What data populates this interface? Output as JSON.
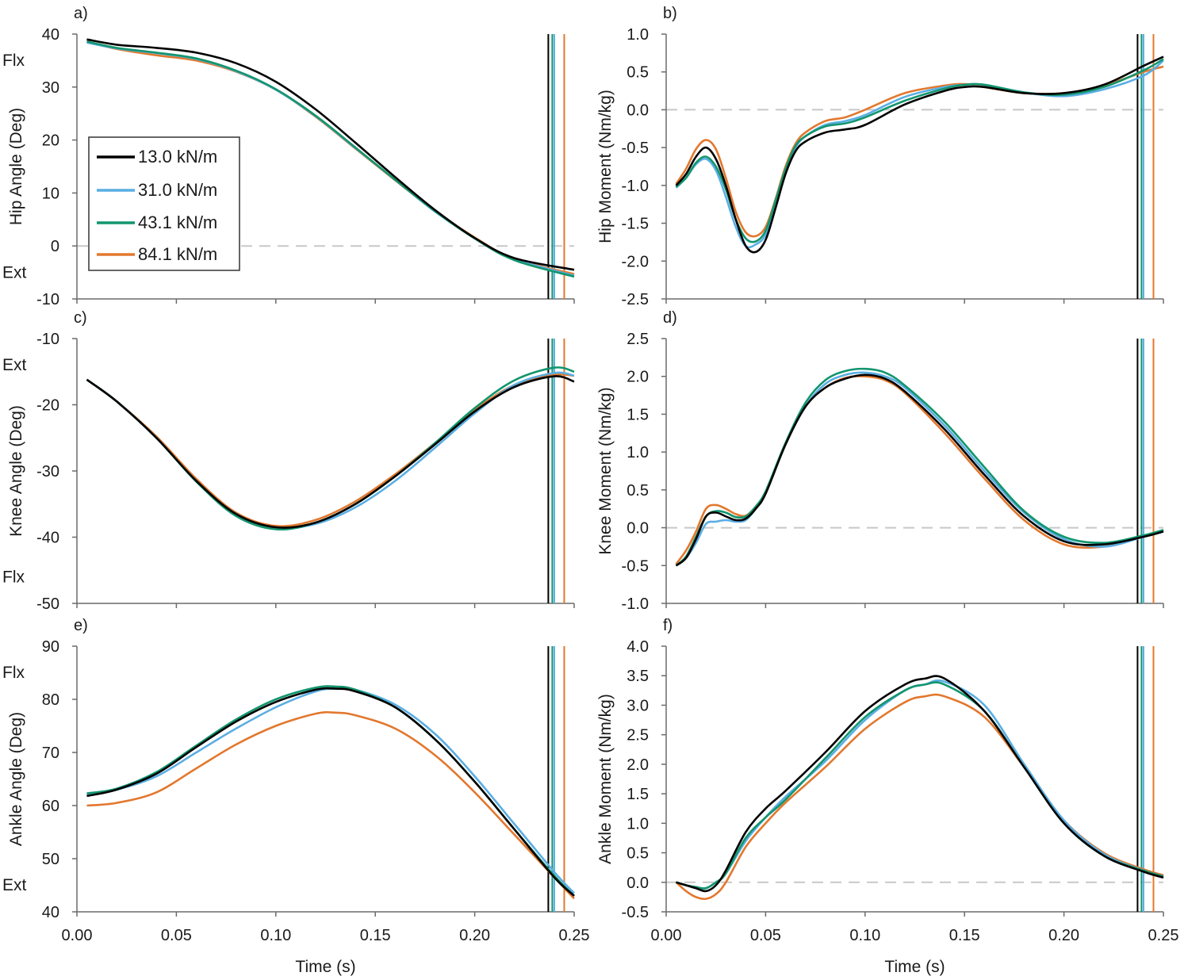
{
  "figure": {
    "xlabel": "Time (s)",
    "legend_title": "",
    "x_ticks": [
      "0.00",
      "0.05",
      "0.10",
      "0.15",
      "0.20",
      "0.25"
    ]
  },
  "series_meta": [
    {
      "name": "13.0 kN/m",
      "color": "#000000",
      "toe_off": 0.237
    },
    {
      "name": "31.0 kN/m",
      "color": "#5aaee3",
      "toe_off": 0.24
    },
    {
      "name": "43.1 kN/m",
      "color": "#12956e",
      "toe_off": 0.239
    },
    {
      "name": "84.1 kN/m",
      "color": "#e2782e",
      "toe_off": 0.245
    }
  ],
  "chart_data": [
    {
      "id": "a",
      "panel_label": "a)",
      "type": "line",
      "ylabel": "Hip Angle (Deg)",
      "xlim": [
        0,
        0.25
      ],
      "ylim": [
        -10,
        40
      ],
      "yticks": [
        "-10",
        "0",
        "10",
        "20",
        "30",
        "40"
      ],
      "direction_top": "Flx",
      "direction_bottom": "Ext",
      "x": [
        0.005,
        0.02,
        0.04,
        0.06,
        0.08,
        0.1,
        0.12,
        0.14,
        0.16,
        0.18,
        0.2,
        0.22,
        0.25
      ],
      "series": [
        {
          "name": "13.0 kN/m",
          "values": [
            39.0,
            38.0,
            37.4,
            36.5,
            34.5,
            31.0,
            25.8,
            19.5,
            13.0,
            6.8,
            1.5,
            -2.3,
            -4.5
          ]
        },
        {
          "name": "31.0 kN/m",
          "values": [
            38.4,
            37.3,
            36.4,
            35.3,
            33.0,
            29.5,
            24.5,
            18.5,
            12.5,
            6.5,
            1.5,
            -2.5,
            -5.6
          ]
        },
        {
          "name": "43.1 kN/m",
          "values": [
            38.6,
            37.4,
            36.5,
            35.4,
            33.1,
            29.6,
            24.6,
            18.6,
            12.5,
            6.6,
            1.4,
            -2.7,
            -5.8
          ]
        },
        {
          "name": "84.1 kN/m",
          "values": [
            38.6,
            37.2,
            36.0,
            35.0,
            32.9,
            29.5,
            24.4,
            18.4,
            12.4,
            6.6,
            1.6,
            -2.5,
            -5.3
          ]
        }
      ]
    },
    {
      "id": "b",
      "panel_label": "b)",
      "type": "line",
      "ylabel": "Hip Moment (Nm/kg)",
      "xlim": [
        0,
        0.25
      ],
      "ylim": [
        -2.5,
        1.0
      ],
      "yticks": [
        "-2.5",
        "-2.0",
        "-1.5",
        "-1.0",
        "-0.5",
        "0.0",
        "0.5",
        "1.0"
      ],
      "x": [
        0.005,
        0.01,
        0.015,
        0.02,
        0.025,
        0.03,
        0.035,
        0.04,
        0.045,
        0.05,
        0.055,
        0.06,
        0.065,
        0.07,
        0.08,
        0.09,
        0.1,
        0.12,
        0.14,
        0.15,
        0.16,
        0.18,
        0.2,
        0.22,
        0.24,
        0.25
      ],
      "series": [
        {
          "name": "13.0 kN/m",
          "values": [
            -1.0,
            -0.85,
            -0.62,
            -0.5,
            -0.65,
            -1.0,
            -1.45,
            -1.8,
            -1.88,
            -1.72,
            -1.3,
            -0.85,
            -0.55,
            -0.42,
            -0.3,
            -0.26,
            -0.2,
            0.07,
            0.25,
            0.3,
            0.3,
            0.22,
            0.22,
            0.33,
            0.58,
            0.7
          ]
        },
        {
          "name": "31.0 kN/m",
          "values": [
            -1.03,
            -0.9,
            -0.72,
            -0.65,
            -0.8,
            -1.15,
            -1.55,
            -1.8,
            -1.78,
            -1.65,
            -1.25,
            -0.8,
            -0.5,
            -0.35,
            -0.2,
            -0.15,
            -0.07,
            0.17,
            0.3,
            0.33,
            0.33,
            0.23,
            0.18,
            0.27,
            0.45,
            0.65
          ]
        },
        {
          "name": "43.1 kN/m",
          "values": [
            -1.02,
            -0.9,
            -0.7,
            -0.62,
            -0.75,
            -1.05,
            -1.45,
            -1.7,
            -1.74,
            -1.6,
            -1.2,
            -0.78,
            -0.48,
            -0.35,
            -0.22,
            -0.18,
            -0.1,
            0.12,
            0.28,
            0.33,
            0.33,
            0.23,
            0.2,
            0.3,
            0.52,
            0.67
          ]
        },
        {
          "name": "84.1 kN/m",
          "values": [
            -0.98,
            -0.78,
            -0.52,
            -0.4,
            -0.52,
            -0.9,
            -1.35,
            -1.62,
            -1.67,
            -1.55,
            -1.18,
            -0.75,
            -0.45,
            -0.3,
            -0.15,
            -0.1,
            0.0,
            0.22,
            0.32,
            0.34,
            0.3,
            0.22,
            0.22,
            0.32,
            0.5,
            0.57
          ]
        }
      ]
    },
    {
      "id": "c",
      "panel_label": "c)",
      "type": "line",
      "ylabel": "Knee Angle (Deg)",
      "xlim": [
        0,
        0.25
      ],
      "ylim": [
        -50,
        -10
      ],
      "yticks": [
        "-50",
        "-40",
        "-30",
        "-20",
        "-10"
      ],
      "direction_top": "Ext",
      "direction_bottom": "Flx",
      "x": [
        0.005,
        0.02,
        0.04,
        0.06,
        0.08,
        0.1,
        0.12,
        0.14,
        0.16,
        0.18,
        0.2,
        0.22,
        0.24,
        0.25
      ],
      "series": [
        {
          "name": "13.0 kN/m",
          "values": [
            -16.2,
            -19.5,
            -25.0,
            -31.5,
            -36.5,
            -38.5,
            -37.8,
            -35.0,
            -30.8,
            -26.0,
            -21.0,
            -17.3,
            -15.7,
            -16.5
          ]
        },
        {
          "name": "31.0 kN/m",
          "values": [
            -16.2,
            -19.5,
            -25.0,
            -31.5,
            -36.5,
            -38.6,
            -38.0,
            -35.5,
            -31.5,
            -26.5,
            -21.3,
            -17.0,
            -15.2,
            -15.6
          ]
        },
        {
          "name": "43.1 kN/m",
          "values": [
            -16.2,
            -19.5,
            -25.0,
            -31.6,
            -36.8,
            -38.8,
            -37.8,
            -35.0,
            -30.8,
            -25.8,
            -20.5,
            -16.3,
            -14.4,
            -15.0
          ]
        },
        {
          "name": "84.1 kN/m",
          "values": [
            -16.2,
            -19.5,
            -24.8,
            -31.2,
            -36.3,
            -38.3,
            -37.4,
            -34.6,
            -30.5,
            -25.8,
            -20.8,
            -17.0,
            -15.5,
            -15.6
          ]
        }
      ]
    },
    {
      "id": "d",
      "panel_label": "d)",
      "type": "line",
      "ylabel": "Knee Moment (Nm/kg)",
      "xlim": [
        0,
        0.25
      ],
      "ylim": [
        -1.0,
        2.5
      ],
      "yticks": [
        "-1.0",
        "-0.5",
        "0.0",
        "0.5",
        "1.0",
        "1.5",
        "2.0",
        "2.5"
      ],
      "x": [
        0.005,
        0.01,
        0.015,
        0.02,
        0.025,
        0.03,
        0.035,
        0.04,
        0.045,
        0.05,
        0.06,
        0.07,
        0.08,
        0.09,
        0.1,
        0.11,
        0.12,
        0.14,
        0.16,
        0.18,
        0.2,
        0.22,
        0.24,
        0.25
      ],
      "series": [
        {
          "name": "13.0 kN/m",
          "values": [
            -0.5,
            -0.4,
            -0.15,
            0.15,
            0.2,
            0.15,
            0.1,
            0.12,
            0.25,
            0.45,
            1.1,
            1.6,
            1.85,
            1.97,
            2.02,
            1.97,
            1.8,
            1.3,
            0.7,
            0.15,
            -0.18,
            -0.22,
            -0.12,
            -0.05
          ]
        },
        {
          "name": "31.0 kN/m",
          "values": [
            -0.5,
            -0.4,
            -0.2,
            0.05,
            0.08,
            0.1,
            0.08,
            0.1,
            0.25,
            0.45,
            1.1,
            1.6,
            1.9,
            2.02,
            2.05,
            2.0,
            1.85,
            1.35,
            0.75,
            0.2,
            -0.15,
            -0.25,
            -0.12,
            -0.05
          ]
        },
        {
          "name": "43.1 kN/m",
          "values": [
            -0.5,
            -0.38,
            -0.12,
            0.15,
            0.22,
            0.2,
            0.14,
            0.15,
            0.28,
            0.48,
            1.12,
            1.65,
            1.95,
            2.07,
            2.1,
            2.05,
            1.88,
            1.4,
            0.8,
            0.22,
            -0.12,
            -0.2,
            -0.1,
            -0.03
          ]
        },
        {
          "name": "84.1 kN/m",
          "values": [
            -0.48,
            -0.3,
            -0.05,
            0.25,
            0.3,
            0.25,
            0.18,
            0.16,
            0.28,
            0.48,
            1.1,
            1.6,
            1.85,
            1.98,
            2.0,
            1.95,
            1.78,
            1.25,
            0.65,
            0.1,
            -0.22,
            -0.25,
            -0.12,
            -0.05
          ]
        }
      ]
    },
    {
      "id": "e",
      "panel_label": "e)",
      "type": "line",
      "ylabel": "Ankle Angle (Deg)",
      "xlim": [
        0,
        0.25
      ],
      "ylim": [
        40,
        90
      ],
      "yticks": [
        "40",
        "50",
        "60",
        "70",
        "80",
        "90"
      ],
      "direction_top": "Flx",
      "direction_bottom": "Ext",
      "x": [
        0.005,
        0.02,
        0.04,
        0.06,
        0.08,
        0.1,
        0.12,
        0.13,
        0.14,
        0.16,
        0.18,
        0.2,
        0.22,
        0.24,
        0.25
      ],
      "series": [
        {
          "name": "13.0 kN/m",
          "values": [
            61.8,
            63.0,
            66.0,
            71.0,
            75.8,
            79.5,
            81.8,
            82.0,
            81.5,
            78.5,
            72.5,
            64.5,
            55.5,
            46.5,
            43.0
          ]
        },
        {
          "name": "31.0 kN/m",
          "values": [
            62.0,
            63.0,
            65.5,
            70.0,
            74.5,
            78.5,
            81.5,
            82.0,
            81.8,
            79.0,
            73.5,
            65.5,
            56.5,
            47.5,
            43.5
          ]
        },
        {
          "name": "43.1 kN/m",
          "values": [
            62.3,
            63.2,
            66.3,
            71.3,
            76.2,
            80.0,
            82.2,
            82.4,
            81.8,
            78.5,
            72.5,
            64.5,
            55.5,
            46.8,
            43.0
          ]
        },
        {
          "name": "84.1 kN/m",
          "values": [
            60.0,
            60.5,
            62.5,
            67.0,
            71.5,
            75.0,
            77.3,
            77.5,
            77.0,
            74.5,
            69.5,
            62.5,
            54.5,
            46.5,
            42.5
          ]
        }
      ]
    },
    {
      "id": "f",
      "panel_label": "f)",
      "type": "line",
      "ylabel": "Ankle Moment (Nm/kg)",
      "xlim": [
        0,
        0.25
      ],
      "ylim": [
        -0.5,
        4.0
      ],
      "yticks": [
        "-0.5",
        "0.0",
        "0.5",
        "1.0",
        "1.5",
        "2.0",
        "2.5",
        "3.0",
        "3.5",
        "4.0"
      ],
      "x": [
        0.005,
        0.01,
        0.015,
        0.02,
        0.025,
        0.03,
        0.04,
        0.05,
        0.06,
        0.08,
        0.1,
        0.12,
        0.13,
        0.14,
        0.16,
        0.18,
        0.2,
        0.22,
        0.24,
        0.25
      ],
      "series": [
        {
          "name": "13.0 kN/m",
          "values": [
            0.0,
            -0.05,
            -0.1,
            -0.15,
            -0.05,
            0.2,
            0.85,
            1.25,
            1.55,
            2.2,
            2.9,
            3.35,
            3.45,
            3.45,
            2.9,
            1.95,
            1.0,
            0.45,
            0.18,
            0.08
          ]
        },
        {
          "name": "31.0 kN/m",
          "values": [
            0.0,
            -0.05,
            -0.1,
            -0.1,
            0.0,
            0.15,
            0.7,
            1.1,
            1.45,
            2.05,
            2.75,
            3.25,
            3.35,
            3.4,
            3.0,
            2.0,
            1.05,
            0.48,
            0.2,
            0.1
          ]
        },
        {
          "name": "43.1 kN/m",
          "values": [
            0.0,
            -0.05,
            -0.08,
            -0.1,
            0.0,
            0.15,
            0.75,
            1.1,
            1.4,
            2.1,
            2.8,
            3.25,
            3.35,
            3.35,
            2.9,
            1.95,
            1.0,
            0.45,
            0.2,
            0.1
          ]
        },
        {
          "name": "84.1 kN/m",
          "values": [
            0.0,
            -0.15,
            -0.25,
            -0.28,
            -0.2,
            0.0,
            0.6,
            1.0,
            1.35,
            1.95,
            2.6,
            3.05,
            3.15,
            3.15,
            2.8,
            1.95,
            1.05,
            0.5,
            0.22,
            0.12
          ]
        }
      ]
    }
  ]
}
